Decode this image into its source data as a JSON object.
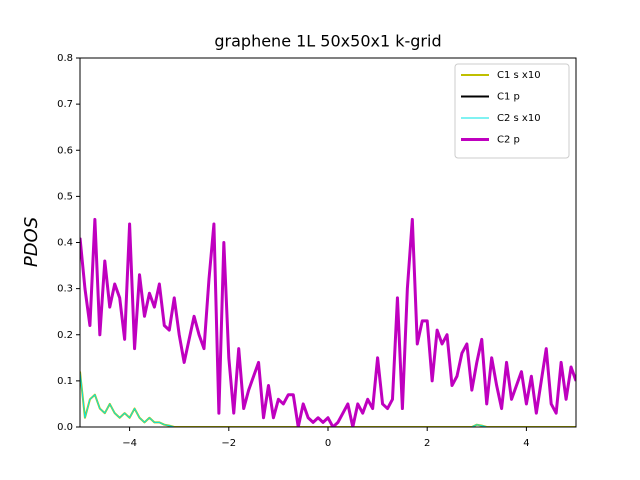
{
  "chart_data": {
    "type": "line",
    "title": "graphene 1L 50x50x1 k-grid",
    "y_label": "PDOS",
    "xlim": [
      -5,
      5
    ],
    "ylim": [
      0,
      0.8
    ],
    "xticks": [
      {
        "value": -4,
        "label": "−4"
      },
      {
        "value": -2,
        "label": "−2"
      },
      0,
      2,
      4
    ],
    "yticks": [
      {
        "value": 0,
        "label": "0.0"
      },
      0.1,
      0.2,
      0.3,
      0.4,
      0.5,
      0.6,
      0.7,
      0.8
    ],
    "legend": "upper right",
    "x": [
      -5.0,
      -4.9,
      -4.8,
      -4.7,
      -4.6,
      -4.5,
      -4.4,
      -4.3,
      -4.2,
      -4.1,
      -4.0,
      -3.9,
      -3.8,
      -3.7,
      -3.6,
      -3.5,
      -3.4,
      -3.3,
      -3.2,
      -3.1,
      -3.0,
      -2.9,
      -2.8,
      -2.7,
      -2.6,
      -2.5,
      -2.4,
      -2.3,
      -2.2,
      -2.1,
      -2.0,
      -1.9,
      -1.8,
      -1.7,
      -1.6,
      -1.5,
      -1.4,
      -1.3,
      -1.2,
      -1.1,
      -1.0,
      -0.9,
      -0.8,
      -0.7,
      -0.6,
      -0.5,
      -0.4,
      -0.3,
      -0.2,
      -0.1,
      0.0,
      0.1,
      0.2,
      0.3,
      0.4,
      0.5,
      0.6,
      0.7,
      0.8,
      0.9,
      1.0,
      1.1,
      1.2,
      1.3,
      1.4,
      1.5,
      1.6,
      1.7,
      1.8,
      1.9,
      2.0,
      2.1,
      2.2,
      2.3,
      2.4,
      2.5,
      2.6,
      2.7,
      2.8,
      2.9,
      3.0,
      3.1,
      3.2,
      3.3,
      3.4,
      3.5,
      3.6,
      3.7,
      3.8,
      3.9,
      4.0,
      4.1,
      4.2,
      4.3,
      4.4,
      4.5,
      4.6,
      4.7,
      4.8,
      4.9,
      5.0
    ],
    "series": [
      {
        "name": "C1 s x10",
        "color": "#bfbf00",
        "width": 2,
        "values": [
          0.12,
          0.02,
          0.06,
          0.07,
          0.04,
          0.03,
          0.05,
          0.03,
          0.02,
          0.03,
          0.02,
          0.04,
          0.02,
          0.01,
          0.02,
          0.01,
          0.01,
          0.005,
          0.003,
          0,
          0,
          0,
          0,
          0,
          0,
          0,
          0,
          0,
          0,
          0,
          0,
          0,
          0,
          0,
          0,
          0,
          0,
          0,
          0,
          0,
          0,
          0,
          0,
          0,
          0,
          0,
          0,
          0,
          0,
          0,
          0,
          0,
          0,
          0,
          0,
          0,
          0,
          0,
          0,
          0,
          0,
          0,
          0,
          0,
          0,
          0,
          0,
          0,
          0,
          0,
          0,
          0,
          0,
          0,
          0,
          0,
          0,
          0,
          0,
          0,
          0.005,
          0.003,
          0,
          0,
          0,
          0,
          0,
          0,
          0,
          0,
          0,
          0,
          0,
          0,
          0,
          0,
          0,
          0,
          0,
          0,
          0
        ]
      },
      {
        "name": "C1 p",
        "color": "#000000",
        "width": 2,
        "values": [
          0.41,
          0.3,
          0.22,
          0.45,
          0.2,
          0.36,
          0.26,
          0.31,
          0.28,
          0.19,
          0.44,
          0.17,
          0.33,
          0.24,
          0.29,
          0.26,
          0.31,
          0.22,
          0.21,
          0.28,
          0.2,
          0.14,
          0.19,
          0.24,
          0.2,
          0.17,
          0.32,
          0.44,
          0.03,
          0.4,
          0.15,
          0.03,
          0.17,
          0.04,
          0.08,
          0.11,
          0.14,
          0.02,
          0.09,
          0.02,
          0.06,
          0.05,
          0.07,
          0.07,
          0.0,
          0.05,
          0.02,
          0.01,
          0.02,
          0.01,
          0.02,
          0.0,
          0.01,
          0.03,
          0.05,
          0.0,
          0.05,
          0.03,
          0.06,
          0.04,
          0.15,
          0.05,
          0.04,
          0.06,
          0.28,
          0.04,
          0.3,
          0.45,
          0.18,
          0.23,
          0.23,
          0.1,
          0.21,
          0.18,
          0.2,
          0.09,
          0.11,
          0.16,
          0.18,
          0.08,
          0.14,
          0.19,
          0.05,
          0.15,
          0.09,
          0.04,
          0.14,
          0.06,
          0.09,
          0.12,
          0.05,
          0.11,
          0.03,
          0.1,
          0.17,
          0.05,
          0.03,
          0.14,
          0.06,
          0.13,
          0.1
        ]
      },
      {
        "name": "C2 s x10",
        "color": "#00e5e5",
        "width": 1,
        "values": [
          0.12,
          0.02,
          0.06,
          0.07,
          0.04,
          0.03,
          0.05,
          0.03,
          0.02,
          0.03,
          0.02,
          0.04,
          0.02,
          0.01,
          0.02,
          0.01,
          0.01,
          0.005,
          0.003,
          0,
          0,
          0,
          0,
          0,
          0,
          0,
          0,
          0,
          0,
          0,
          0,
          0,
          0,
          0,
          0,
          0,
          0,
          0,
          0,
          0,
          0,
          0,
          0,
          0,
          0,
          0,
          0,
          0,
          0,
          0,
          0,
          0,
          0,
          0,
          0,
          0,
          0,
          0,
          0,
          0,
          0,
          0,
          0,
          0,
          0,
          0,
          0,
          0,
          0,
          0,
          0,
          0,
          0,
          0,
          0,
          0,
          0,
          0,
          0,
          0,
          0.005,
          0.003,
          0,
          0,
          0,
          0,
          0,
          0,
          0,
          0,
          0,
          0,
          0,
          0,
          0,
          0,
          0,
          0,
          0,
          0,
          0
        ]
      },
      {
        "name": "C2 p",
        "color": "#bf00bf",
        "width": 3,
        "values": [
          0.41,
          0.3,
          0.22,
          0.45,
          0.2,
          0.36,
          0.26,
          0.31,
          0.28,
          0.19,
          0.44,
          0.17,
          0.33,
          0.24,
          0.29,
          0.26,
          0.31,
          0.22,
          0.21,
          0.28,
          0.2,
          0.14,
          0.19,
          0.24,
          0.2,
          0.17,
          0.32,
          0.44,
          0.03,
          0.4,
          0.15,
          0.03,
          0.17,
          0.04,
          0.08,
          0.11,
          0.14,
          0.02,
          0.09,
          0.02,
          0.06,
          0.05,
          0.07,
          0.07,
          0.0,
          0.05,
          0.02,
          0.01,
          0.02,
          0.01,
          0.02,
          0.0,
          0.01,
          0.03,
          0.05,
          0.0,
          0.05,
          0.03,
          0.06,
          0.04,
          0.15,
          0.05,
          0.04,
          0.06,
          0.28,
          0.04,
          0.3,
          0.45,
          0.18,
          0.23,
          0.23,
          0.1,
          0.21,
          0.18,
          0.2,
          0.09,
          0.11,
          0.16,
          0.18,
          0.08,
          0.14,
          0.19,
          0.05,
          0.15,
          0.09,
          0.04,
          0.14,
          0.06,
          0.09,
          0.12,
          0.05,
          0.11,
          0.03,
          0.1,
          0.17,
          0.05,
          0.03,
          0.14,
          0.06,
          0.13,
          0.1
        ]
      }
    ]
  }
}
